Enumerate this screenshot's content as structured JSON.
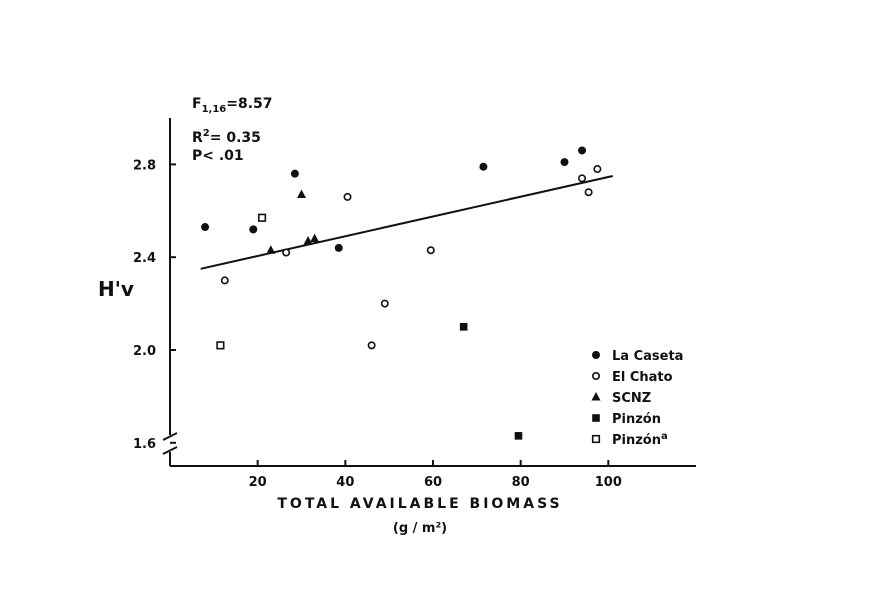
{
  "chart_data": {
    "type": "scatter",
    "xlabel": "TOTAL AVAILABLE BIOMASS",
    "xlabel_unit": "(g / m²)",
    "ylabel": "H'v",
    "xlim": [
      0,
      120
    ],
    "ylim": [
      1.5,
      3.0
    ],
    "x_ticks": [
      20,
      40,
      60,
      80,
      100
    ],
    "y_ticks": [
      1.6,
      2.0,
      2.4,
      2.8
    ],
    "x_tick_labels": [
      "20",
      "40",
      "60",
      "80",
      "100"
    ],
    "y_tick_labels": [
      "1.6",
      "2.0",
      "2.4",
      "2.8"
    ],
    "grid": false,
    "legend_position": "bottom-right",
    "axis_break": "y",
    "stats": {
      "f_label": "F",
      "f_subscript": "1,16",
      "f_value": "=8.57",
      "r2_label": "R",
      "r2_superscript": "2",
      "r2_value": "= 0.35",
      "p_text": "P< .01"
    },
    "trendline": {
      "x": [
        7,
        101
      ],
      "y": [
        2.35,
        2.75
      ]
    },
    "series": [
      {
        "name": "La Caseta",
        "marker": "filled-circle",
        "points": [
          [
            8,
            2.53
          ],
          [
            19,
            2.52
          ],
          [
            28.5,
            2.76
          ],
          [
            38.5,
            2.44
          ],
          [
            71.5,
            2.79
          ],
          [
            90,
            2.81
          ],
          [
            94,
            2.86
          ]
        ]
      },
      {
        "name": "El Chato",
        "marker": "open-circle",
        "points": [
          [
            12.5,
            2.3
          ],
          [
            26.5,
            2.42
          ],
          [
            40.5,
            2.66
          ],
          [
            46,
            2.02
          ],
          [
            49,
            2.2
          ],
          [
            59.5,
            2.43
          ],
          [
            94,
            2.74
          ],
          [
            95.5,
            2.68
          ],
          [
            97.5,
            2.78
          ]
        ]
      },
      {
        "name": "SCNZ",
        "marker": "filled-triangle",
        "points": [
          [
            23,
            2.43
          ],
          [
            30,
            2.67
          ],
          [
            31.5,
            2.47
          ],
          [
            33,
            2.48
          ]
        ]
      },
      {
        "name": "Pinzón",
        "marker": "filled-square",
        "points": [
          [
            67,
            2.1
          ],
          [
            79.5,
            1.63
          ]
        ]
      },
      {
        "name": "Pinzón",
        "name_superscript": "a",
        "marker": "open-square",
        "points": [
          [
            11.5,
            2.02
          ],
          [
            21,
            2.57
          ]
        ]
      }
    ]
  }
}
